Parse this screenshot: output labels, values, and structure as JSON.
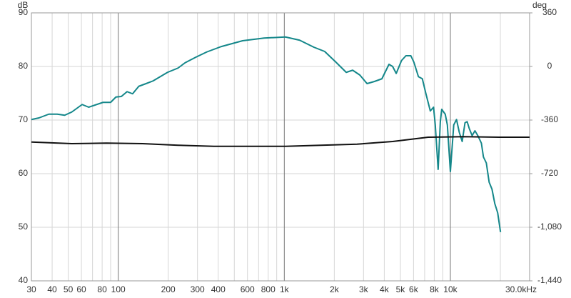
{
  "chart_data": {
    "type": "line",
    "y_label": "dB",
    "y2_label": "deg",
    "log_x": true,
    "grid": true,
    "xlim": [
      30,
      30000
    ],
    "xticks": [
      30,
      40,
      50,
      60,
      80,
      100,
      200,
      300,
      400,
      600,
      800,
      {
        "value": 1000,
        "label": "1k"
      },
      {
        "value": 2000,
        "label": "2k"
      },
      {
        "value": 3000,
        "label": "3k"
      },
      {
        "value": 4000,
        "label": "4k"
      },
      {
        "value": 5000,
        "label": "5k"
      },
      {
        "value": 6000,
        "label": "6k"
      },
      {
        "value": 8000,
        "label": "8k"
      },
      {
        "value": 10000,
        "label": "10k"
      },
      {
        "value": 30000,
        "label": "30.0kHz"
      }
    ],
    "minor_xticks": [
      70,
      90,
      500,
      700,
      900,
      7000,
      9000,
      20000
    ],
    "ylim": [
      40,
      90
    ],
    "yticks": [
      40,
      50,
      60,
      70,
      80,
      90
    ],
    "y2lim": [
      -1440,
      360
    ],
    "y2ticks": [
      {
        "value": -1440,
        "label": "-1,440"
      },
      {
        "value": -1080,
        "label": "-1,080"
      },
      -720,
      -360,
      0,
      360
    ],
    "series": [
      {
        "color": "#14878a",
        "x": [
          30,
          33.3,
          38.2,
          42.9,
          47.6,
          52.5,
          60.6,
          66.4,
          81,
          90,
          96.9,
          104.4,
          113,
          122,
          133,
          147,
          162,
          198,
          229,
          253,
          292,
          341,
          416,
          561,
          756,
          1016,
          1237,
          1505,
          1750,
          2030,
          2360,
          2580,
          2850,
          3150,
          3490,
          3870,
          4270,
          4490,
          4720,
          5080,
          5400,
          5780,
          6030,
          6420,
          6780,
          7100,
          7570,
          7920,
          8110,
          8440,
          8700,
          8870,
          9310,
          9590,
          10000,
          10480,
          10890,
          11320,
          11780,
          12250,
          12620,
          13000,
          13520,
          14060,
          14630,
          15370,
          15820,
          16460,
          17120,
          17810,
          18520,
          19270,
          20040
        ],
        "values": [
          70.1,
          70.4,
          71.1,
          71.1,
          70.9,
          71.5,
          72.9,
          72.4,
          73.3,
          73.3,
          74.3,
          74.4,
          75.3,
          74.9,
          76.3,
          76.8,
          77.3,
          78.9,
          79.7,
          80.7,
          81.7,
          82.7,
          83.7,
          84.8,
          85.3,
          85.5,
          84.9,
          83.6,
          82.8,
          80.9,
          78.9,
          79.3,
          78.4,
          76.8,
          77.2,
          77.7,
          80.4,
          80.0,
          78.7,
          81.1,
          82.0,
          82.0,
          80.8,
          78.1,
          77.7,
          75.1,
          71.7,
          72.4,
          69.1,
          60.8,
          69.7,
          72.0,
          71.1,
          69.1,
          60.4,
          69.1,
          70.1,
          67.7,
          66.0,
          69.5,
          69.7,
          68.4,
          67.1,
          68.0,
          67.1,
          65.7,
          63.1,
          62.0,
          58.4,
          57.1,
          54.4,
          52.7,
          49.1
        ]
      },
      {
        "color": "#111111",
        "x": [
          30,
          52.5,
          85,
          140,
          229,
          377,
          561,
          1016,
          1665,
          2740,
          4490,
          7350,
          12020,
          19650,
          30000
        ],
        "values": [
          65.9,
          65.6,
          65.7,
          65.6,
          65.3,
          65.1,
          65.1,
          65.1,
          65.3,
          65.5,
          66.0,
          66.8,
          66.9,
          66.8,
          66.8
        ]
      }
    ]
  }
}
